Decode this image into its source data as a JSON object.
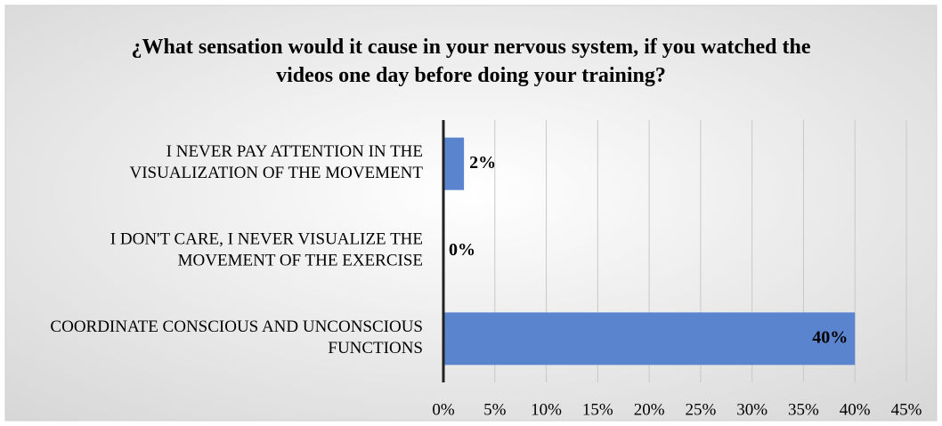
{
  "chart_data": {
    "type": "bar",
    "orientation": "horizontal",
    "title": "¿What sensation would it cause in your nervous system, if you watched the videos one day before doing your training?",
    "categories": [
      "I NEVER PAY ATTENTION IN THE VISUALIZATION OF THE MOVEMENT",
      "I DON'T CARE, I NEVER VISUALIZE THE MOVEMENT OF THE EXERCISE",
      "COORDINATE CONSCIOUS AND UNCONSCIOUS FUNCTIONS"
    ],
    "values": [
      2,
      0,
      40
    ],
    "value_labels": [
      "2%",
      "0%",
      "40%"
    ],
    "color": "#5b84cf",
    "xlim": [
      0,
      45
    ],
    "xticks": [
      {
        "value": 0,
        "label": "0%"
      },
      {
        "value": 5,
        "label": "5%"
      },
      {
        "value": 10,
        "label": "10%"
      },
      {
        "value": 15,
        "label": "15%"
      },
      {
        "value": 20,
        "label": "20%"
      },
      {
        "value": 25,
        "label": "25%"
      },
      {
        "value": 30,
        "label": "30%"
      },
      {
        "value": 35,
        "label": "35%"
      },
      {
        "value": 40,
        "label": "40%"
      },
      {
        "value": 45,
        "label": "45%"
      }
    ],
    "grid": true
  }
}
